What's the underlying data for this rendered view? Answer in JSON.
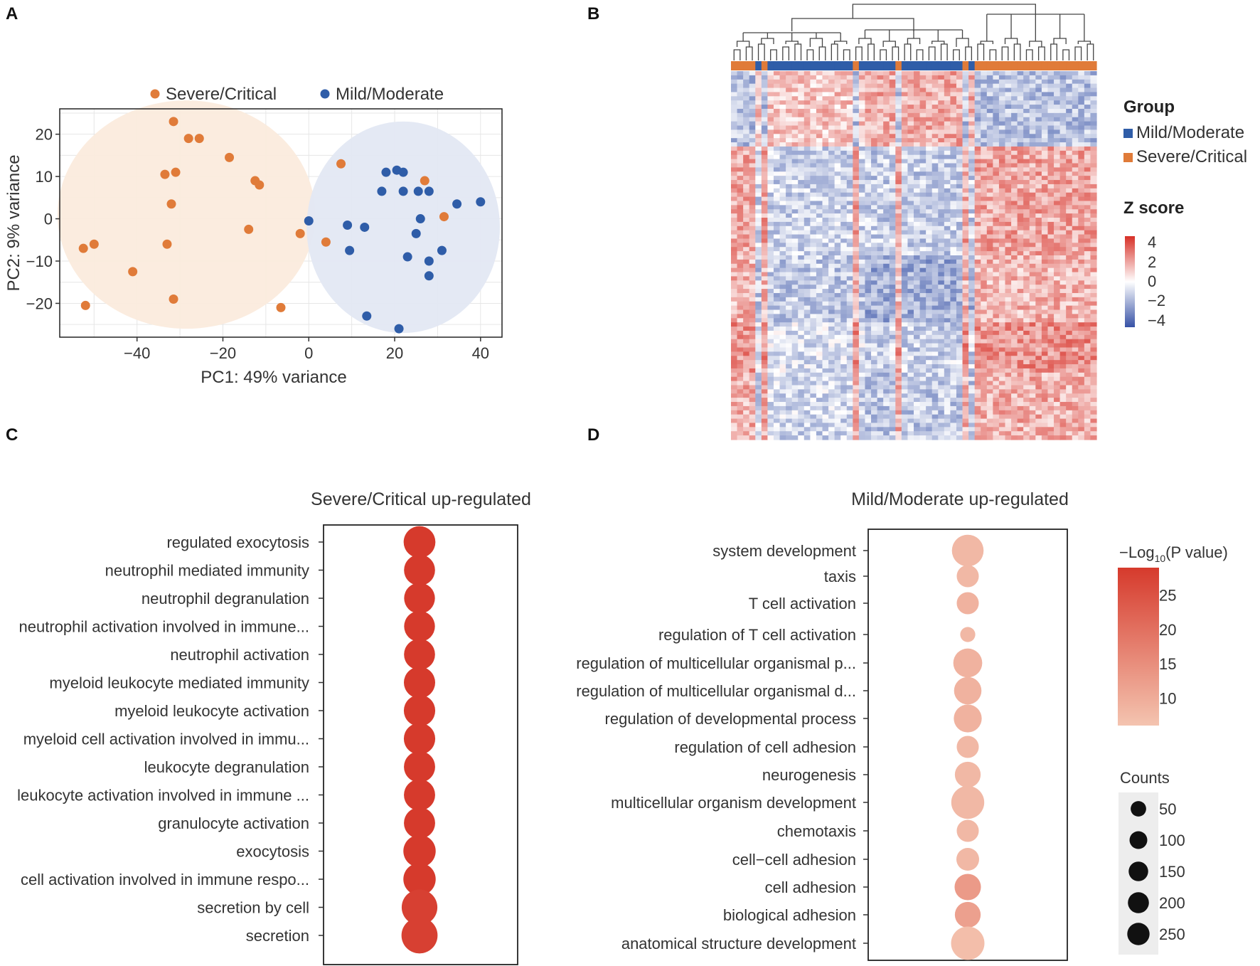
{
  "panels": {
    "a": "A",
    "b": "B",
    "c": "C",
    "d": "D"
  },
  "colors": {
    "severe": "#E07B39",
    "mild": "#2F5DA8",
    "severe_ellipse": "#FBEBDD",
    "mild_ellipse": "#E3E8F3",
    "dot_red": "#D63A2C",
    "heat_red": "#D73027",
    "heat_blue": "#3651A6"
  },
  "chart_data": [
    {
      "id": "A",
      "type": "scatter",
      "title": "",
      "xlabel": "PC1: 49% variance",
      "ylabel": "PC2: 9% variance",
      "xlim": [
        -58,
        45
      ],
      "ylim": [
        -28,
        26
      ],
      "xticks": [
        -40,
        -20,
        0,
        20,
        40
      ],
      "yticks": [
        -20,
        -10,
        0,
        10,
        20
      ],
      "xtick_labels": [
        "−40",
        "−20",
        "0",
        "20",
        "40"
      ],
      "ytick_labels": [
        "−20",
        "−10",
        "0",
        "10",
        "20"
      ],
      "grid": true,
      "legend": [
        "Severe/Critical",
        "Mild/Moderate"
      ],
      "legend_position": "top",
      "series": [
        {
          "name": "Severe/Critical",
          "points": [
            [
              -31.5,
              23
            ],
            [
              -28,
              19
            ],
            [
              -25.5,
              19
            ],
            [
              -18.5,
              14.5
            ],
            [
              -33.5,
              10.5
            ],
            [
              -31,
              11
            ],
            [
              -12.5,
              9
            ],
            [
              -11.5,
              8
            ],
            [
              -32,
              3.5
            ],
            [
              -14,
              -2.5
            ],
            [
              -33,
              -6
            ],
            [
              -50,
              -6
            ],
            [
              -52.5,
              -7
            ],
            [
              -41,
              -12.5
            ],
            [
              -31.5,
              -19
            ],
            [
              -52,
              -20.5
            ],
            [
              -6.5,
              -21
            ],
            [
              -2,
              -3.5
            ],
            [
              4,
              -5.5
            ],
            [
              7.5,
              13
            ],
            [
              27,
              9
            ],
            [
              31.5,
              0.5
            ]
          ]
        },
        {
          "name": "Mild/Moderate",
          "points": [
            [
              18,
              11
            ],
            [
              20.5,
              11.5
            ],
            [
              22,
              11
            ],
            [
              17,
              6.5
            ],
            [
              22,
              6.5
            ],
            [
              25.5,
              6.5
            ],
            [
              28,
              6.5
            ],
            [
              34.5,
              3.5
            ],
            [
              40,
              4
            ],
            [
              0,
              -0.5
            ],
            [
              9,
              -1.5
            ],
            [
              13,
              -2
            ],
            [
              26,
              0
            ],
            [
              25,
              -3.5
            ],
            [
              9.5,
              -7.5
            ],
            [
              31,
              -7.5
            ],
            [
              23,
              -9
            ],
            [
              28,
              -10
            ],
            [
              28,
              -13.5
            ],
            [
              13.5,
              -23
            ],
            [
              21,
              -26
            ]
          ]
        }
      ],
      "ellipses": [
        {
          "group": "Severe/Critical",
          "center": [
            -28.5,
            1
          ],
          "radii": [
            30,
            27
          ]
        },
        {
          "group": "Mild/Moderate",
          "center": [
            22,
            -2
          ],
          "radii": [
            22.5,
            25
          ]
        }
      ]
    },
    {
      "id": "B",
      "type": "heatmap",
      "legend_title": "Group",
      "groups": [
        "Mild/Moderate",
        "Severe/Critical"
      ],
      "colorbar_title": "Z score",
      "colorbar_ticks": [
        "4",
        "2",
        "0",
        "−2",
        "−4"
      ],
      "colorbar_range": [
        -4,
        4
      ],
      "sample_groups": [
        "S",
        "S",
        "S",
        "S",
        "M",
        "S",
        "M",
        "M",
        "M",
        "M",
        "M",
        "M",
        "M",
        "M",
        "M",
        "M",
        "M",
        "M",
        "M",
        "M",
        "S",
        "M",
        "M",
        "M",
        "M",
        "M",
        "M",
        "S",
        "M",
        "M",
        "M",
        "M",
        "M",
        "M",
        "M",
        "M",
        "M",
        "M",
        "S",
        "M",
        "S",
        "S",
        "S",
        "S",
        "S",
        "S",
        "S",
        "S",
        "S",
        "S",
        "S",
        "S",
        "S",
        "S",
        "S",
        "S",
        "S",
        "S",
        "S",
        "S"
      ],
      "row_blocks": [
        {
          "rows": 18,
          "severe": -1.4,
          "mild_a": 1.1,
          "mild_b": 1.6
        },
        {
          "rows": 26,
          "severe": 1.7,
          "mild_a": -1.0,
          "mild_b": -1.1
        },
        {
          "rows": 16,
          "severe": 1.4,
          "mild_a": -1.2,
          "mild_b": -1.9
        },
        {
          "rows": 12,
          "severe": 2.1,
          "mild_a": -0.7,
          "mild_b": -1.0
        },
        {
          "rows": 16,
          "severe": 1.5,
          "mild_a": -0.9,
          "mild_b": -1.2
        }
      ]
    },
    {
      "id": "C",
      "type": "scatter",
      "title": "Severe/Critical up-regulated",
      "categories": [
        "regulated exocytosis",
        "neutrophil mediated immunity",
        "neutrophil degranulation",
        "neutrophil activation involved in immune...",
        "neutrophil activation",
        "myeloid leukocyte mediated immunity",
        "myeloid leukocyte activation",
        "myeloid cell activation involved in immu...",
        "leukocyte degranulation",
        "leukocyte activation involved in immune ...",
        "granulocyte activation",
        "exocytosis",
        "cell activation involved in immune respo...",
        "secretion by cell",
        "secretion"
      ],
      "neg_log10_p": [
        29,
        29,
        29,
        29,
        29,
        29,
        29,
        29,
        29,
        29,
        29,
        29,
        29,
        28,
        28
      ],
      "counts": [
        140,
        132,
        130,
        130,
        132,
        135,
        136,
        136,
        134,
        134,
        134,
        146,
        146,
        185,
        190
      ]
    },
    {
      "id": "D",
      "type": "scatter",
      "title": "Mild/Moderate up-regulated",
      "categories": [
        "system development",
        "taxis",
        "T cell activation",
        "regulation of T cell activation",
        "regulation of multicellular organismal p...",
        "regulation of multicellular organismal d...",
        "regulation of developmental process",
        "regulation of cell adhesion",
        "neurogenesis",
        "multicellular organism development",
        "chemotaxis",
        "cell−cell adhesion",
        "cell adhesion",
        "biological adhesion",
        "anatomical structure development"
      ],
      "categories_display": [
        "system development",
        "taxis",
        "T cell activation",
        "regulation of T cell activation",
        "regulation of multicellular organismal p...",
        "regulation of multicellular organismal d...",
        "regulation of developmental process",
        "regulation of cell adhesion",
        "neurogenesis",
        "multicellular organism development",
        "chemotaxis",
        "cell−cell adhesion",
        "cell adhesion",
        "biological adhesion",
        "anatomical structure development"
      ],
      "neg_log10_p": [
        8,
        8,
        9,
        8,
        9,
        9,
        9,
        8,
        8,
        8,
        8,
        8,
        13,
        12,
        7
      ],
      "counts": [
        150,
        60,
        60,
        20,
        120,
        105,
        110,
        60,
        90,
        165,
        60,
        65,
        95,
        90,
        170
      ],
      "color_legend_title_prefix": "−Log",
      "color_legend_title_sub": "10",
      "color_legend_title_suffix": "(P value)",
      "color_legend_ticks": [
        "25",
        "20",
        "15",
        "10"
      ],
      "color_legend_values": [
        25,
        20,
        15,
        10
      ],
      "color_range": [
        6,
        29
      ],
      "size_legend_title": "Counts",
      "size_legend_values": [
        50,
        100,
        150,
        200,
        250
      ],
      "size_legend_labels": [
        "50",
        "100",
        "150",
        "200",
        "250"
      ]
    }
  ]
}
